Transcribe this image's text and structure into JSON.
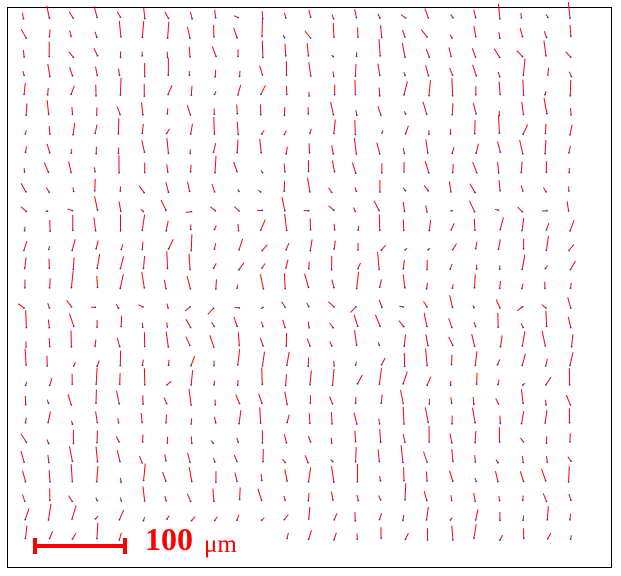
{
  "figure": {
    "vector_color": "#ff0000",
    "point_color": "#3333cc",
    "frame_color": "#000000"
  },
  "scalebar": {
    "value": "100",
    "unit": "μm"
  }
}
